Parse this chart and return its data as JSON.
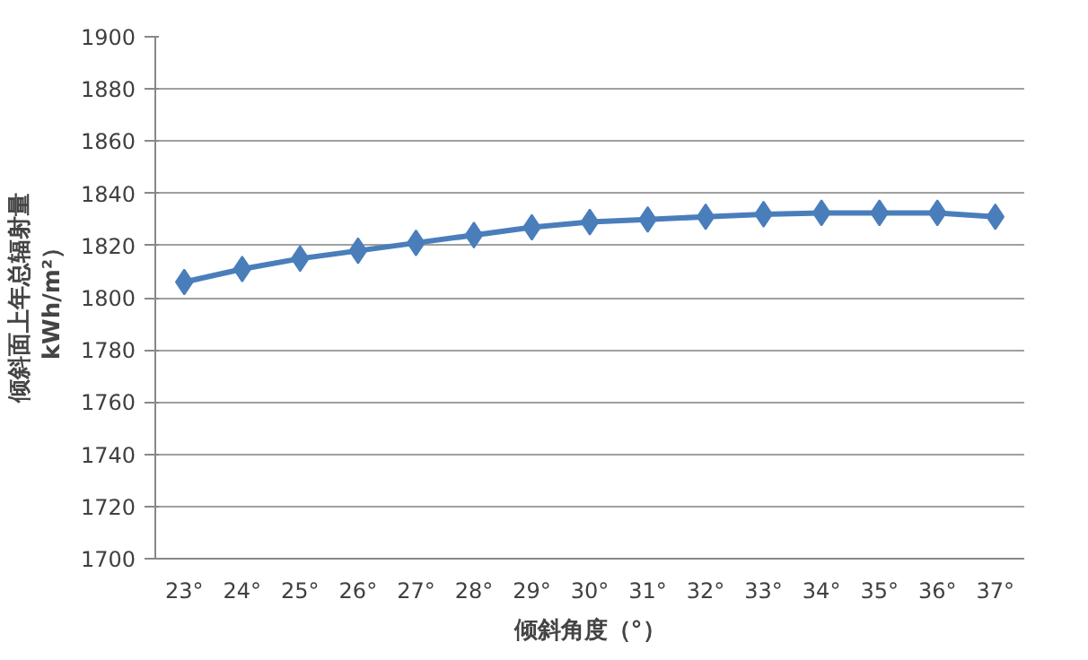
{
  "chart_data": {
    "type": "line",
    "xlabel": "倾斜角度（°）",
    "ylabel": "倾斜面上年总辐射量\nkWh/m²）",
    "categories": [
      "23°",
      "24°",
      "25°",
      "26°",
      "27°",
      "28°",
      "29°",
      "30°",
      "31°",
      "32°",
      "33°",
      "34°",
      "35°",
      "36°",
      "37°"
    ],
    "series": [
      {
        "color": "#4a7ebb",
        "values": [
          1806,
          1811,
          1815,
          1818,
          1821,
          1824,
          1827,
          1829,
          1830,
          1831,
          1832,
          1832.5,
          1832.5,
          1832.5,
          1831
        ]
      }
    ],
    "ylim": [
      1700,
      1900
    ],
    "yticks": [
      1700,
      1720,
      1740,
      1760,
      1780,
      1800,
      1820,
      1840,
      1860,
      1880,
      1900
    ],
    "grid": "y",
    "marker": "diamond",
    "line_style": "solid"
  }
}
